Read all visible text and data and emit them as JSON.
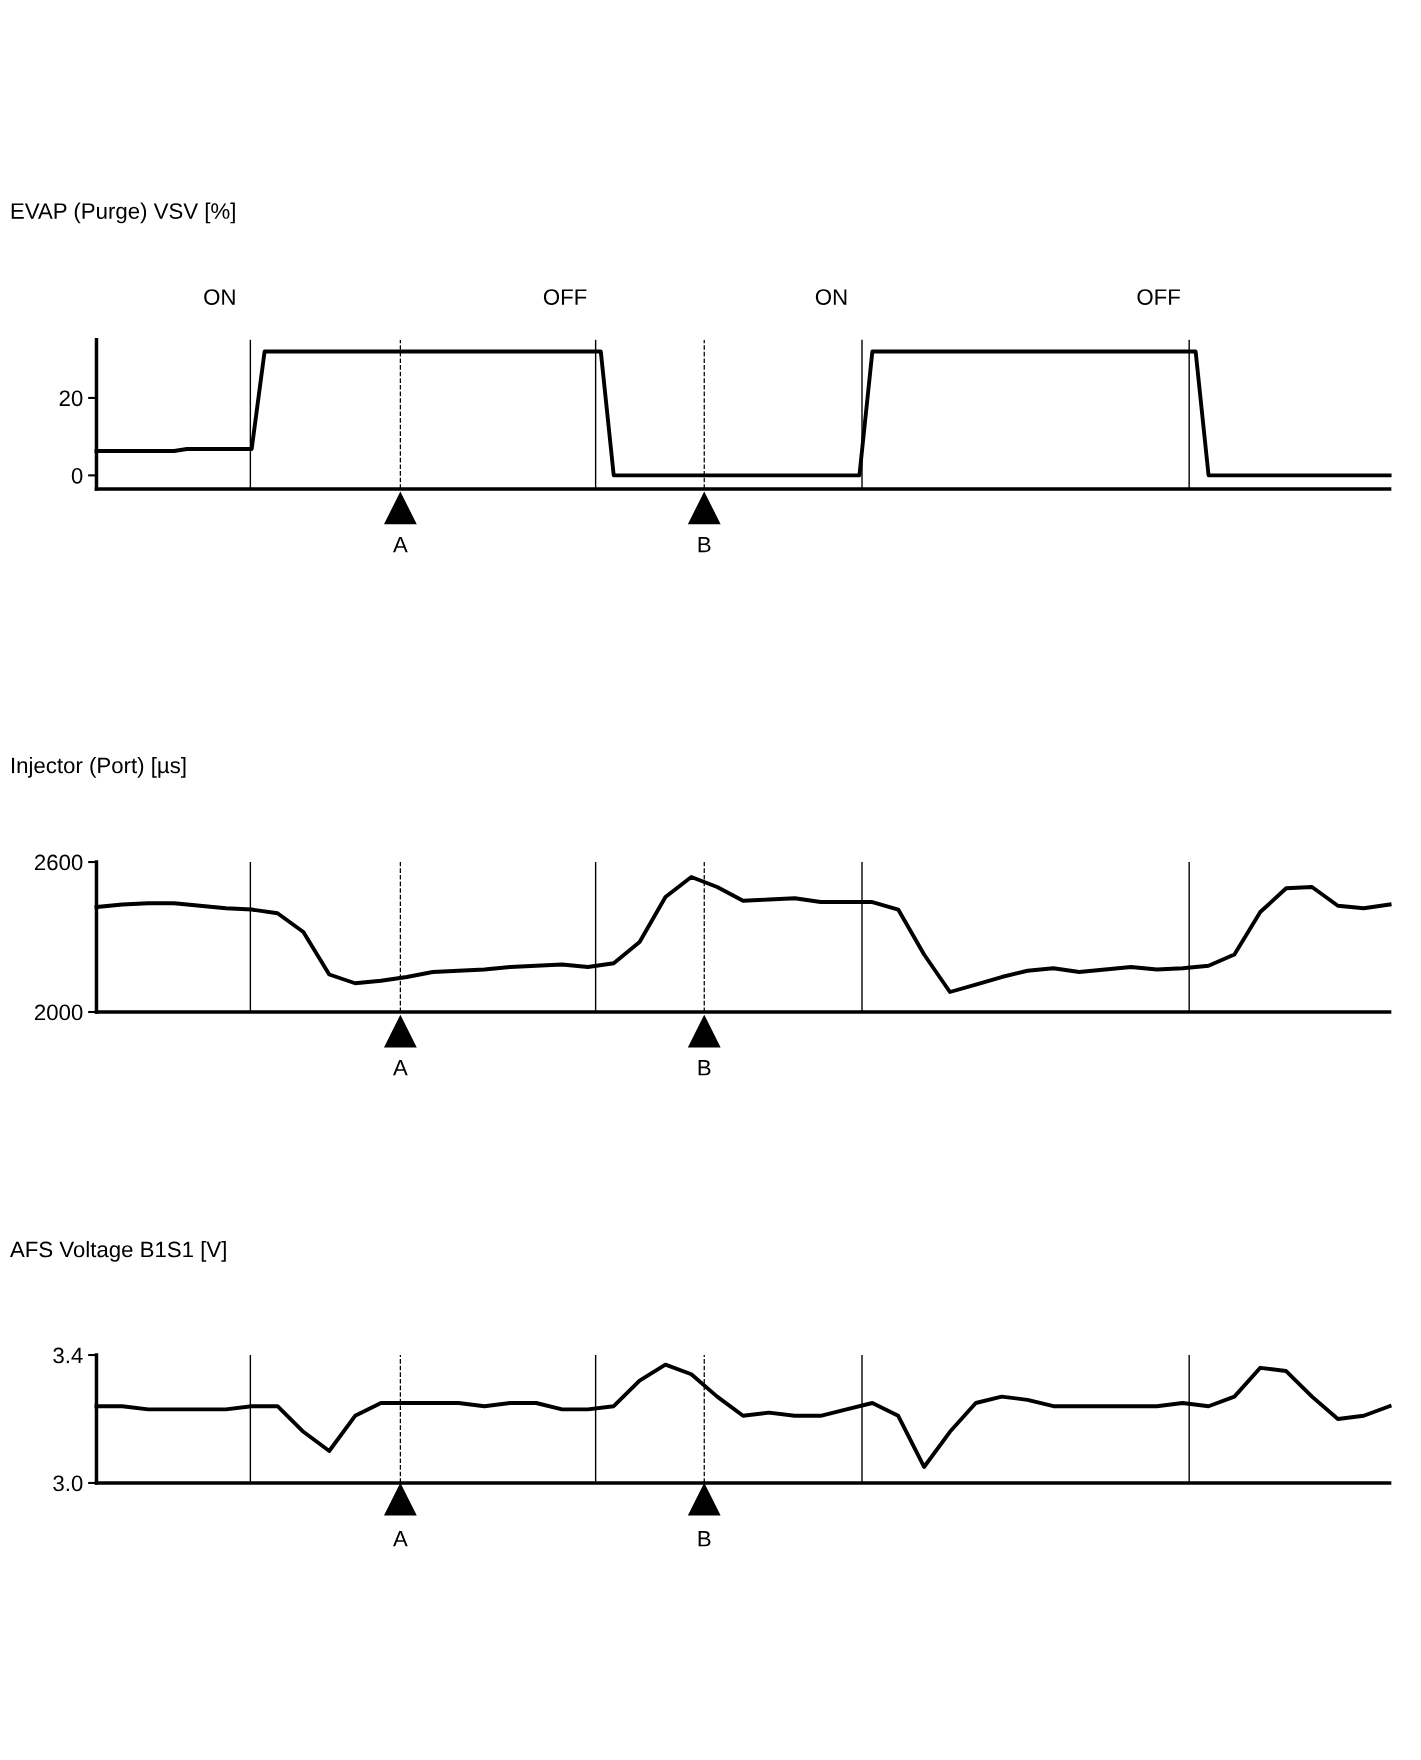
{
  "chart_data": [
    {
      "type": "line",
      "title": "EVAP (Purge) VSV [%]",
      "ylim": [
        -3.5,
        35
      ],
      "yticks": [
        0,
        20
      ],
      "tick_labels": "y",
      "grid": false,
      "marker": "none",
      "line_style": "solid",
      "categories": [
        null,
        null,
        null,
        null,
        null,
        null,
        null,
        null,
        null,
        null,
        null,
        null,
        null,
        null,
        null,
        null,
        null,
        null,
        null,
        null,
        null,
        null,
        null,
        null,
        null,
        null,
        null,
        null,
        null,
        null,
        null,
        null,
        null,
        null,
        null,
        null,
        null,
        null,
        null,
        null,
        null,
        null,
        null,
        null,
        null,
        null,
        null,
        null,
        null,
        null,
        null,
        null,
        null,
        null,
        null,
        null,
        null,
        null,
        null,
        null,
        null,
        null,
        null,
        null,
        null,
        null,
        null,
        null,
        null,
        null,
        null,
        null,
        null,
        null,
        null,
        null,
        null,
        null,
        null,
        null,
        null,
        null,
        null,
        null,
        null,
        null,
        null,
        null,
        null,
        null,
        null,
        null,
        null,
        null,
        null,
        null,
        null,
        null,
        null,
        null,
        null
      ],
      "series": [
        {
          "color": "#000000",
          "values": [
            6.3,
            6.3,
            6.3,
            6.3,
            6.3,
            6.3,
            6.3,
            6.8,
            6.8,
            6.8,
            6.8,
            6.8,
            6.8,
            32,
            32,
            32,
            32,
            32,
            32,
            32,
            32,
            32,
            32,
            32,
            32,
            32,
            32,
            32,
            32,
            32,
            32,
            32,
            32,
            32,
            32,
            32,
            32,
            32,
            32,
            32,
            0,
            0,
            0,
            0,
            0,
            0,
            0,
            0,
            0,
            0,
            0,
            0,
            0,
            0,
            0,
            0,
            0,
            0,
            0,
            0,
            32,
            32,
            32,
            32,
            32,
            32,
            32,
            32,
            32,
            32,
            32,
            32,
            32,
            32,
            32,
            32,
            32,
            32,
            32,
            32,
            32,
            32,
            32,
            32,
            32,
            32,
            0,
            0,
            0,
            0,
            0,
            0,
            0,
            0,
            0,
            0,
            0,
            0,
            0,
            0,
            0
          ]
        }
      ],
      "annotations": [
        "ON",
        "OFF",
        "ON",
        "OFF",
        "A",
        "B"
      ]
    },
    {
      "type": "line",
      "title": "Injector (Port) [µs]",
      "ylim": [
        2000,
        2600
      ],
      "yticks": [
        2000,
        2600
      ],
      "tick_labels": "y",
      "grid": false,
      "marker": "none",
      "line_style": "solid",
      "categories": [
        null,
        null,
        null,
        null,
        null,
        null,
        null,
        null,
        null,
        null,
        null,
        null,
        null,
        null,
        null,
        null,
        null,
        null,
        null,
        null,
        null,
        null,
        null,
        null,
        null,
        null,
        null,
        null,
        null,
        null,
        null,
        null,
        null,
        null,
        null,
        null,
        null,
        null,
        null,
        null,
        null,
        null,
        null,
        null,
        null,
        null,
        null,
        null,
        null,
        null,
        null
      ],
      "annotations": [
        "A",
        "B"
      ],
      "series": [
        {
          "color": "#000000",
          "values": [
            2420,
            2430,
            2435,
            2435,
            2425,
            2415,
            2410,
            2395,
            2320,
            2150,
            2115,
            2125,
            2140,
            2160,
            2165,
            2170,
            2180,
            2185,
            2190,
            2180,
            2195,
            2280,
            2460,
            2540,
            2500,
            2445,
            2450,
            2455,
            2440,
            2440,
            2440,
            2410,
            2230,
            2080,
            2110,
            2140,
            2165,
            2175,
            2160,
            2170,
            2180,
            2170,
            2175,
            2185,
            2230,
            2400,
            2495,
            2500,
            2425,
            2415,
            2430
          ]
        }
      ]
    },
    {
      "type": "line",
      "title": "AFS Voltage B1S1 [V]",
      "ylim": [
        3.0,
        3.4
      ],
      "yticks": [
        {
          "value": 3.0,
          "label": "3.0"
        },
        {
          "value": 3.4,
          "label": "3.4"
        }
      ],
      "tick_labels": "y",
      "grid": false,
      "marker": "none",
      "line_style": "solid",
      "categories": [
        null,
        null,
        null,
        null,
        null,
        null,
        null,
        null,
        null,
        null,
        null,
        null,
        null,
        null,
        null,
        null,
        null,
        null,
        null,
        null,
        null,
        null,
        null,
        null,
        null,
        null,
        null,
        null,
        null,
        null,
        null,
        null,
        null,
        null,
        null,
        null,
        null,
        null,
        null,
        null,
        null,
        null,
        null,
        null,
        null,
        null,
        null,
        null,
        null,
        null,
        null
      ],
      "annotations": [
        "A",
        "B"
      ],
      "series": [
        {
          "color": "#000000",
          "values": [
            3.24,
            3.24,
            3.23,
            3.23,
            3.23,
            3.23,
            3.24,
            3.24,
            3.16,
            3.1,
            3.21,
            3.25,
            3.25,
            3.25,
            3.25,
            3.24,
            3.25,
            3.25,
            3.23,
            3.23,
            3.24,
            3.32,
            3.37,
            3.34,
            3.27,
            3.21,
            3.22,
            3.21,
            3.21,
            3.23,
            3.25,
            3.21,
            3.05,
            3.16,
            3.25,
            3.27,
            3.26,
            3.24,
            3.24,
            3.24,
            3.24,
            3.24,
            3.25,
            3.24,
            3.27,
            3.36,
            3.35,
            3.27,
            3.2,
            3.21,
            3.24
          ]
        }
      ]
    }
  ]
}
